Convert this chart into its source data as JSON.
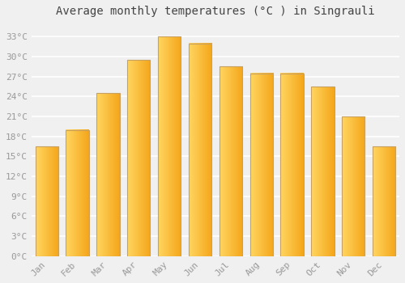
{
  "title": "Average monthly temperatures (°C ) in Singrauli",
  "months": [
    "Jan",
    "Feb",
    "Mar",
    "Apr",
    "May",
    "Jun",
    "Jul",
    "Aug",
    "Sep",
    "Oct",
    "Nov",
    "Dec"
  ],
  "values": [
    16.5,
    19.0,
    24.5,
    29.5,
    33.0,
    32.0,
    28.5,
    27.5,
    27.5,
    25.5,
    21.0,
    16.5
  ],
  "bar_color_right": "#F5A800",
  "bar_color_left": "#FFD060",
  "bar_edge_color": "#C8A060",
  "ylim": [
    0,
    35
  ],
  "yticks": [
    0,
    3,
    6,
    9,
    12,
    15,
    18,
    21,
    24,
    27,
    30,
    33
  ],
  "ytick_labels": [
    "0°C",
    "3°C",
    "6°C",
    "9°C",
    "12°C",
    "15°C",
    "18°C",
    "21°C",
    "24°C",
    "27°C",
    "30°C",
    "33°C"
  ],
  "background_color": "#f0f0f0",
  "grid_color": "#ffffff",
  "title_fontsize": 10,
  "tick_fontsize": 8,
  "font_family": "monospace"
}
